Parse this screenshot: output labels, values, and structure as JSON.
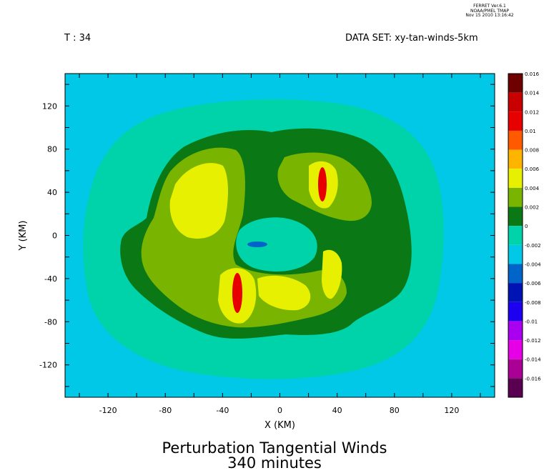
{
  "header": {
    "software": "FERRET  Ver.6.1",
    "org": "NOAA/PMEL TMAP",
    "datetime": "Nov 15 2010 13:16:42"
  },
  "time_label": "T : 34",
  "dataset_label": "DATA SET: xy-tan-winds-5km",
  "chart_data": {
    "type": "heatmap",
    "title": "Perturbation Tangential Winds",
    "subtitle": "340 minutes",
    "xlabel": "X (KM)",
    "ylabel": "Y (KM)",
    "xlim": [
      -150,
      150
    ],
    "ylim": [
      -150,
      150
    ],
    "xticks": [
      -120,
      -80,
      -40,
      0,
      40,
      80,
      120
    ],
    "yticks": [
      120,
      80,
      40,
      0,
      -40,
      -80,
      -120
    ],
    "xtick_labels": [
      "-120",
      "-80",
      "-40",
      "0",
      "40",
      "80",
      "120"
    ],
    "ytick_labels": [
      "120",
      "80",
      "40",
      "0",
      "-40",
      "-80",
      "-120"
    ],
    "colorbar": {
      "levels": [
        0.016,
        0.014,
        0.012,
        0.01,
        0.008,
        0.006,
        0.004,
        0.002,
        0,
        -0.002,
        -0.004,
        -0.006,
        -0.008,
        -0.01,
        -0.012,
        -0.014,
        -0.016
      ],
      "labels": [
        "0.016",
        "0.014",
        "0.012",
        "0.01",
        "0.008",
        "0.006",
        "0.004",
        "0.002",
        "0",
        "-0.002",
        "-0.004",
        "-0.006",
        "-0.008",
        "-0.01",
        "-0.012",
        "-0.014",
        "-0.016"
      ],
      "colors": [
        "#6e0000",
        "#c80000",
        "#e60000",
        "#ff5a00",
        "#ffb400",
        "#e6f000",
        "#78b400",
        "#0a7814",
        "#00d2aa",
        "#00c8e6",
        "#0064c8",
        "#0014b4",
        "#1e00f0",
        "#aa00f0",
        "#e600e6",
        "#aa0096",
        "#5a0050"
      ]
    },
    "regions": [
      {
        "name": "background",
        "level": -0.002
      },
      {
        "name": "outer-halo",
        "level": 0.0
      },
      {
        "name": "ring",
        "level": 0.002
      },
      {
        "name": "crescent",
        "level": 0.004
      },
      {
        "name": "jet-core",
        "level": 0.006
      },
      {
        "name": "jet-max",
        "level": 0.012
      },
      {
        "name": "eye",
        "level": 0.0
      },
      {
        "name": "eye-core",
        "level": -0.004
      }
    ]
  }
}
